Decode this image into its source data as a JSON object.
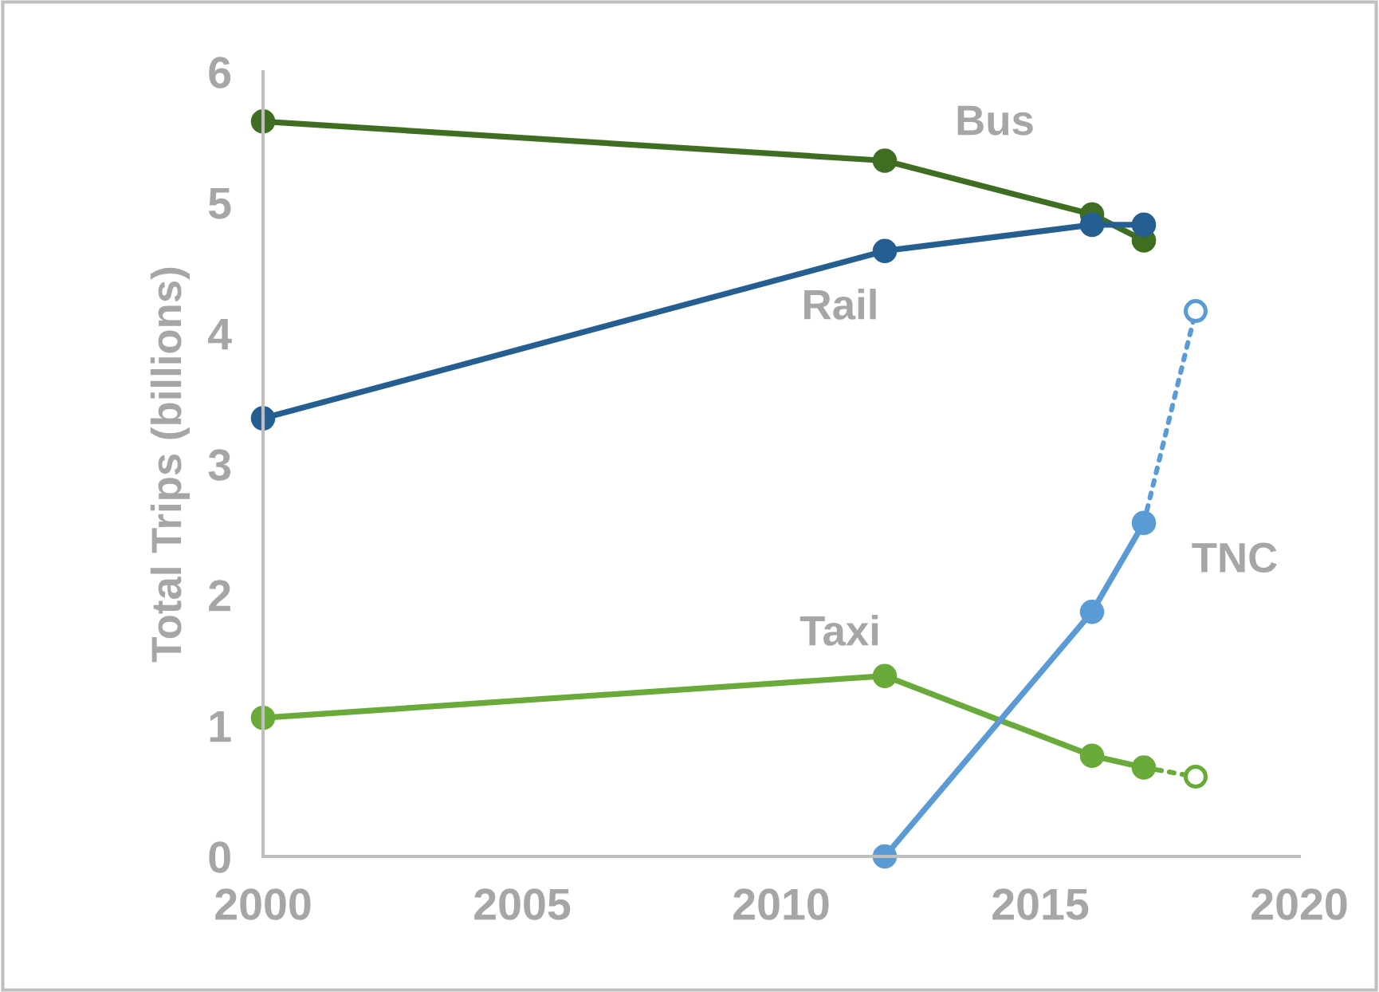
{
  "chart_data": {
    "type": "line",
    "ylabel": "Total Trips (billions)",
    "xlim": [
      2000,
      2020
    ],
    "xticks": [
      2000,
      2005,
      2010,
      2015,
      2020
    ],
    "ylim": [
      0,
      6
    ],
    "yticks": [
      0,
      1,
      2,
      3,
      4,
      5,
      6
    ],
    "grid": false,
    "legend": false,
    "marker": "circle",
    "series": [
      {
        "line_style": "dotted",
        "color": "#6aaa3a",
        "x": [
          2017,
          2018
        ],
        "values": [
          0.68,
          0.61
        ]
      },
      {
        "line_style": "dotted",
        "color": "#5b9bd5",
        "x": [
          2017,
          2018
        ],
        "values": [
          2.55,
          4.17
        ]
      },
      {
        "name": "Bus",
        "color": "#3f6e22",
        "x": [
          2000,
          2012,
          2016,
          2017
        ],
        "values": [
          5.62,
          5.32,
          4.91,
          4.71
        ]
      },
      {
        "name": "Rail",
        "color": "#255e91",
        "x": [
          2000,
          2012,
          2016,
          2017
        ],
        "values": [
          3.35,
          4.63,
          4.83,
          4.83
        ]
      },
      {
        "name": "Taxi",
        "color": "#6aaa3a",
        "x": [
          2000,
          2012,
          2016,
          2017
        ],
        "values": [
          1.06,
          1.38,
          0.77,
          0.68
        ]
      },
      {
        "name": "TNC",
        "color": "#5b9bd5",
        "x": [
          2012,
          2016,
          2017
        ],
        "values": [
          0.0,
          1.87,
          2.55
        ]
      }
    ]
  }
}
